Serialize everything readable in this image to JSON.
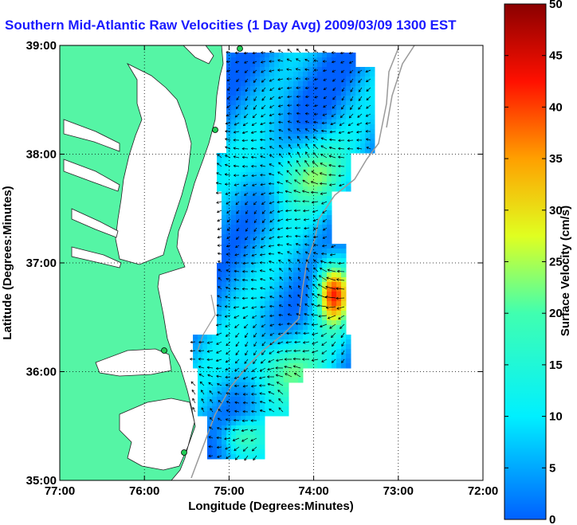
{
  "title": "Southern Mid-Atlantic Raw Velocities (1 Day Avg) 2009/03/09 1300 EST",
  "chart_data": {
    "type": "heatmap",
    "xlabel": "Longitude (Degrees:Minutes)",
    "ylabel": "Latitude (Degrees:Minutes)",
    "x_ticks": [
      "77:00",
      "76:00",
      "75:00",
      "74:00",
      "73:00",
      "72:00"
    ],
    "y_ticks": [
      "39:00",
      "38:00",
      "37:00",
      "36:00",
      "35:00"
    ],
    "xlim": [
      -77,
      -72
    ],
    "ylim": [
      35,
      39
    ],
    "grid": true,
    "colorbar": {
      "label": "Surface Velocity (cm/s)",
      "min": 0,
      "max": 50,
      "ticks": [
        "50",
        "45",
        "40",
        "35",
        "30",
        "25",
        "20",
        "15",
        "10",
        "5",
        "0"
      ]
    },
    "colors": {
      "land": "#55f5a5",
      "title": "#1a1aff",
      "vectors": "#000000"
    }
  }
}
